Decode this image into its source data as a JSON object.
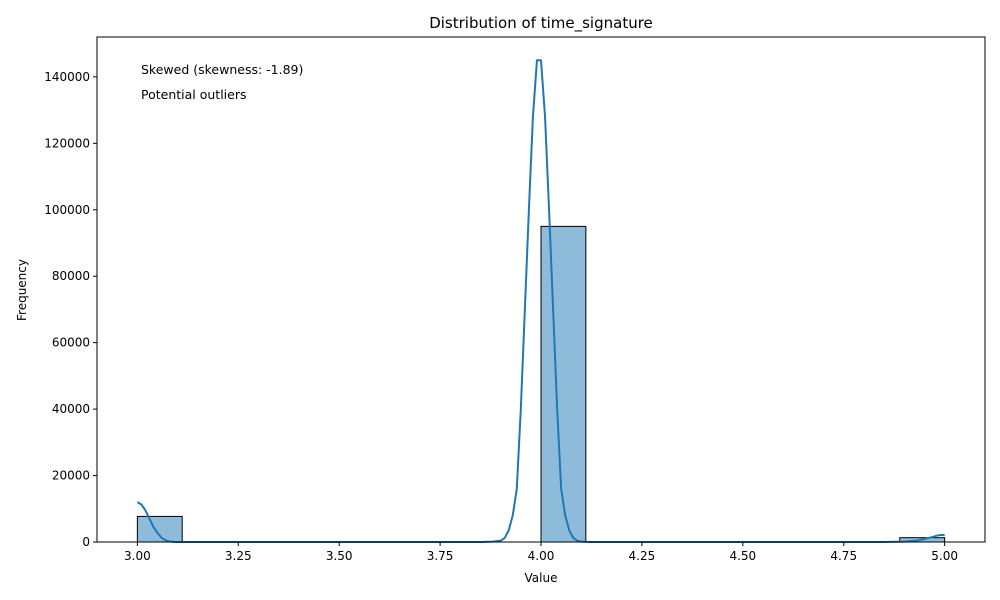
{
  "chart_data": {
    "type": "bar",
    "title": "Distribution of time_signature",
    "xlabel": "Value",
    "ylabel": "Frequency",
    "xlim": [
      2.9,
      5.1
    ],
    "ylim": [
      0,
      152000
    ],
    "x_ticks": [
      3.0,
      3.25,
      3.5,
      3.75,
      4.0,
      4.25,
      4.5,
      4.75,
      5.0
    ],
    "x_tick_labels": [
      "3.00",
      "3.25",
      "3.50",
      "3.75",
      "4.00",
      "4.25",
      "4.50",
      "4.75",
      "5.00"
    ],
    "y_ticks": [
      0,
      20000,
      40000,
      60000,
      80000,
      100000,
      120000,
      140000
    ],
    "y_tick_labels": [
      "0",
      "20000",
      "40000",
      "60000",
      "80000",
      "100000",
      "120000",
      "140000"
    ],
    "grid": false,
    "bins": [
      {
        "x0": 3.0,
        "x1": 3.1111,
        "count": 7700
      },
      {
        "x0": 3.1111,
        "x1": 3.2222,
        "count": 0
      },
      {
        "x0": 3.2222,
        "x1": 3.3333,
        "count": 0
      },
      {
        "x0": 3.3333,
        "x1": 3.4444,
        "count": 0
      },
      {
        "x0": 3.4444,
        "x1": 3.5556,
        "count": 0
      },
      {
        "x0": 3.5556,
        "x1": 3.6667,
        "count": 0
      },
      {
        "x0": 3.6667,
        "x1": 3.7778,
        "count": 0
      },
      {
        "x0": 3.7778,
        "x1": 3.8889,
        "count": 0
      },
      {
        "x0": 3.8889,
        "x1": 4.0,
        "count": 0
      },
      {
        "x0": 4.0,
        "x1": 4.1111,
        "count": 95000
      },
      {
        "x0": 4.1111,
        "x1": 4.2222,
        "count": 0
      },
      {
        "x0": 4.2222,
        "x1": 4.3333,
        "count": 0
      },
      {
        "x0": 4.3333,
        "x1": 4.4444,
        "count": 0
      },
      {
        "x0": 4.4444,
        "x1": 4.5556,
        "count": 0
      },
      {
        "x0": 4.5556,
        "x1": 4.6667,
        "count": 0
      },
      {
        "x0": 4.6667,
        "x1": 4.7778,
        "count": 0
      },
      {
        "x0": 4.7778,
        "x1": 4.8889,
        "count": 0
      },
      {
        "x0": 4.8889,
        "x1": 5.0,
        "count": 1300
      }
    ],
    "kde_line": {
      "x": [
        3.0,
        3.01,
        3.02,
        3.03,
        3.04,
        3.05,
        3.06,
        3.07,
        3.08,
        3.09,
        3.1,
        3.12,
        3.15,
        3.2,
        3.3,
        3.5,
        3.7,
        3.85,
        3.88,
        3.9,
        3.91,
        3.92,
        3.93,
        3.94,
        3.95,
        3.96,
        3.97,
        3.98,
        3.99,
        4.0,
        4.01,
        4.02,
        4.03,
        4.04,
        4.05,
        4.06,
        4.07,
        4.08,
        4.09,
        4.1,
        4.12,
        4.15,
        4.3,
        4.6,
        4.85,
        4.9,
        4.93,
        4.95,
        4.97,
        4.98,
        4.99,
        5.0
      ],
      "y": [
        12000,
        11300,
        9500,
        7000,
        4500,
        2700,
        1300,
        500,
        150,
        50,
        10,
        0,
        0,
        0,
        0,
        0,
        0,
        0,
        100,
        400,
        1200,
        3500,
        8000,
        16000,
        40000,
        70000,
        100000,
        128000,
        145000,
        145000,
        128000,
        100000,
        70000,
        40000,
        16000,
        8000,
        3500,
        1200,
        400,
        100,
        0,
        0,
        0,
        0,
        0,
        100,
        400,
        900,
        1500,
        1900,
        2100,
        2100
      ]
    },
    "colors": {
      "bar_fill": "#8fbbdb",
      "bar_edge": "#000000",
      "kde_line": "#1f77b4"
    }
  },
  "annotations": [
    "Skewed (skewness: -1.89)",
    "Potential outliers"
  ]
}
